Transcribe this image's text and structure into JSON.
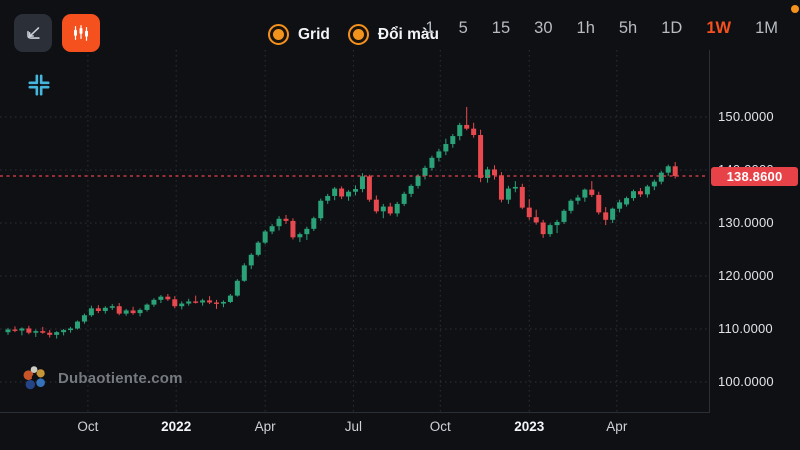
{
  "colors": {
    "background": "#0f1014",
    "toolbar_button": "#2b2f38",
    "accent_orange": "#f4511e",
    "toggle_orange": "#f4921e",
    "candle_up": "#2aa378",
    "candle_down": "#e8494e",
    "price_line": "#e8444a",
    "price_label_bg": "#e64247",
    "grid": "#2c3038",
    "axis_border": "#2b2f37",
    "crosshair_icon": "#45b6dd"
  },
  "toolbar": {
    "buttons": [
      {
        "name": "line-chart-type",
        "active": false
      },
      {
        "name": "candlestick-chart-type",
        "active": true
      }
    ],
    "toggles": [
      {
        "label": "Grid",
        "state": "on"
      },
      {
        "label": "Đổi màu",
        "state": "on"
      }
    ],
    "timeframes": {
      "items": [
        "1",
        "5",
        "15",
        "30",
        "1h",
        "5h",
        "1D",
        "1W",
        "1M"
      ],
      "active": "1W"
    }
  },
  "watermark": {
    "text": "Dubaotiente.com"
  },
  "chart_data": {
    "type": "candlestick",
    "timeframe": "1W",
    "grid": true,
    "last_price": 138.86,
    "last_price_label": "138.8600",
    "ylim": [
      97,
      155
    ],
    "y_ticks": [
      {
        "value": 150,
        "label": "150.0000"
      },
      {
        "value": 140,
        "label": "140.0000"
      },
      {
        "value": 130,
        "label": "130.0000"
      },
      {
        "value": 120,
        "label": "120.0000"
      },
      {
        "value": 110,
        "label": "110.0000"
      },
      {
        "value": 100,
        "label": "100.0000"
      }
    ],
    "x_labels": [
      {
        "label": "Oct",
        "index": 11.5,
        "bold": false
      },
      {
        "label": "2022",
        "index": 24.2,
        "bold": true
      },
      {
        "label": "Apr",
        "index": 37.0,
        "bold": false
      },
      {
        "label": "Jul",
        "index": 49.7,
        "bold": false
      },
      {
        "label": "Oct",
        "index": 62.2,
        "bold": false
      },
      {
        "label": "2023",
        "index": 75.0,
        "bold": true
      },
      {
        "label": "Apr",
        "index": 87.6,
        "bold": false
      }
    ],
    "candles": [
      [
        109.4,
        110.2,
        108.9,
        109.9
      ],
      [
        109.9,
        110.5,
        109.4,
        109.7
      ],
      [
        109.7,
        110.3,
        108.8,
        110.1
      ],
      [
        110.1,
        110.6,
        109.0,
        109.3
      ],
      [
        109.3,
        109.9,
        108.5,
        109.6
      ],
      [
        109.6,
        110.4,
        109.1,
        109.3
      ],
      [
        109.3,
        109.8,
        108.4,
        108.9
      ],
      [
        108.9,
        109.6,
        108.2,
        109.4
      ],
      [
        109.4,
        110.0,
        108.8,
        109.8
      ],
      [
        109.8,
        110.4,
        109.3,
        110.1
      ],
      [
        110.1,
        111.6,
        109.9,
        111.4
      ],
      [
        111.4,
        112.9,
        111.0,
        112.6
      ],
      [
        112.6,
        114.4,
        112.3,
        113.9
      ],
      [
        113.9,
        114.5,
        113.0,
        113.4
      ],
      [
        113.4,
        114.3,
        112.9,
        114.0
      ],
      [
        114.0,
        114.7,
        113.6,
        114.3
      ],
      [
        114.3,
        114.9,
        112.6,
        112.9
      ],
      [
        112.9,
        113.8,
        112.5,
        113.5
      ],
      [
        113.5,
        114.2,
        112.7,
        113.0
      ],
      [
        113.0,
        113.9,
        112.4,
        113.6
      ],
      [
        113.6,
        114.8,
        113.3,
        114.6
      ],
      [
        114.6,
        115.8,
        114.2,
        115.5
      ],
      [
        115.5,
        116.4,
        114.9,
        116.1
      ],
      [
        116.1,
        116.6,
        115.3,
        115.6
      ],
      [
        115.6,
        116.2,
        113.9,
        114.3
      ],
      [
        114.3,
        115.2,
        113.7,
        114.8
      ],
      [
        114.8,
        115.7,
        114.4,
        115.2
      ],
      [
        115.2,
        116.3,
        114.8,
        115.0
      ],
      [
        115.0,
        115.7,
        114.4,
        115.4
      ],
      [
        115.4,
        116.2,
        114.7,
        115.0
      ],
      [
        115.0,
        115.5,
        113.8,
        114.8
      ],
      [
        114.8,
        115.4,
        114.1,
        115.1
      ],
      [
        115.1,
        116.6,
        114.9,
        116.3
      ],
      [
        116.3,
        119.4,
        116.1,
        119.1
      ],
      [
        119.1,
        122.4,
        118.9,
        122.0
      ],
      [
        122.0,
        124.3,
        121.3,
        124.0
      ],
      [
        124.0,
        126.6,
        123.7,
        126.3
      ],
      [
        126.3,
        128.7,
        126.0,
        128.4
      ],
      [
        128.4,
        129.8,
        127.9,
        129.4
      ],
      [
        129.4,
        131.3,
        128.6,
        130.8
      ],
      [
        130.8,
        131.5,
        129.8,
        130.4
      ],
      [
        130.4,
        130.9,
        126.9,
        127.3
      ],
      [
        127.3,
        128.2,
        126.4,
        127.9
      ],
      [
        127.9,
        129.3,
        126.8,
        128.9
      ],
      [
        128.9,
        131.2,
        128.5,
        130.9
      ],
      [
        130.9,
        134.6,
        130.4,
        134.2
      ],
      [
        134.2,
        135.5,
        133.6,
        135.1
      ],
      [
        135.1,
        136.8,
        134.3,
        136.5
      ],
      [
        136.5,
        136.9,
        134.5,
        135.0
      ],
      [
        135.0,
        136.2,
        134.2,
        135.9
      ],
      [
        135.9,
        137.1,
        135.2,
        136.4
      ],
      [
        136.4,
        139.4,
        135.8,
        138.8
      ],
      [
        138.8,
        139.1,
        134.0,
        134.4
      ],
      [
        134.4,
        135.2,
        131.8,
        132.2
      ],
      [
        132.2,
        133.6,
        130.9,
        133.1
      ],
      [
        133.1,
        133.8,
        131.4,
        131.8
      ],
      [
        131.8,
        134.0,
        131.2,
        133.6
      ],
      [
        133.6,
        135.9,
        133.2,
        135.5
      ],
      [
        135.5,
        137.3,
        134.9,
        137.0
      ],
      [
        137.0,
        139.2,
        136.5,
        138.9
      ],
      [
        138.9,
        140.8,
        138.2,
        140.4
      ],
      [
        140.4,
        142.7,
        139.9,
        142.3
      ],
      [
        142.3,
        144.0,
        141.6,
        143.5
      ],
      [
        143.5,
        145.9,
        142.8,
        144.9
      ],
      [
        144.9,
        146.8,
        144.2,
        146.4
      ],
      [
        146.4,
        148.9,
        145.6,
        148.5
      ],
      [
        148.5,
        151.9,
        147.5,
        147.8
      ],
      [
        147.8,
        148.9,
        146.1,
        146.6
      ],
      [
        146.6,
        147.6,
        137.7,
        138.5
      ],
      [
        138.5,
        140.6,
        137.6,
        140.1
      ],
      [
        140.1,
        140.9,
        138.2,
        139.0
      ],
      [
        139.0,
        139.6,
        133.9,
        134.4
      ],
      [
        134.4,
        137.0,
        133.6,
        136.5
      ],
      [
        136.5,
        137.9,
        135.8,
        136.8
      ],
      [
        136.8,
        137.4,
        132.6,
        132.9
      ],
      [
        132.9,
        134.5,
        130.6,
        131.1
      ],
      [
        131.1,
        132.5,
        129.7,
        130.1
      ],
      [
        130.1,
        130.6,
        127.2,
        127.9
      ],
      [
        127.9,
        129.9,
        127.4,
        129.6
      ],
      [
        129.6,
        130.6,
        128.1,
        130.2
      ],
      [
        130.2,
        132.6,
        129.8,
        132.3
      ],
      [
        132.3,
        134.5,
        131.8,
        134.2
      ],
      [
        134.2,
        135.3,
        133.5,
        134.8
      ],
      [
        134.8,
        136.5,
        134.0,
        136.3
      ],
      [
        136.3,
        137.9,
        134.9,
        135.3
      ],
      [
        135.3,
        135.9,
        131.6,
        132.0
      ],
      [
        132.0,
        133.0,
        129.6,
        130.6
      ],
      [
        130.6,
        132.9,
        130.0,
        132.7
      ],
      [
        132.7,
        134.4,
        132.0,
        133.9
      ],
      [
        133.5,
        135.0,
        133.1,
        134.7
      ],
      [
        134.7,
        136.3,
        134.2,
        136.0
      ],
      [
        136.0,
        136.6,
        134.9,
        135.4
      ],
      [
        135.4,
        137.2,
        134.8,
        136.9
      ],
      [
        136.9,
        138.2,
        136.2,
        137.8
      ],
      [
        137.8,
        139.8,
        137.3,
        139.5
      ],
      [
        139.5,
        141.0,
        138.9,
        140.7
      ],
      [
        140.7,
        141.5,
        138.4,
        138.86
      ]
    ]
  }
}
